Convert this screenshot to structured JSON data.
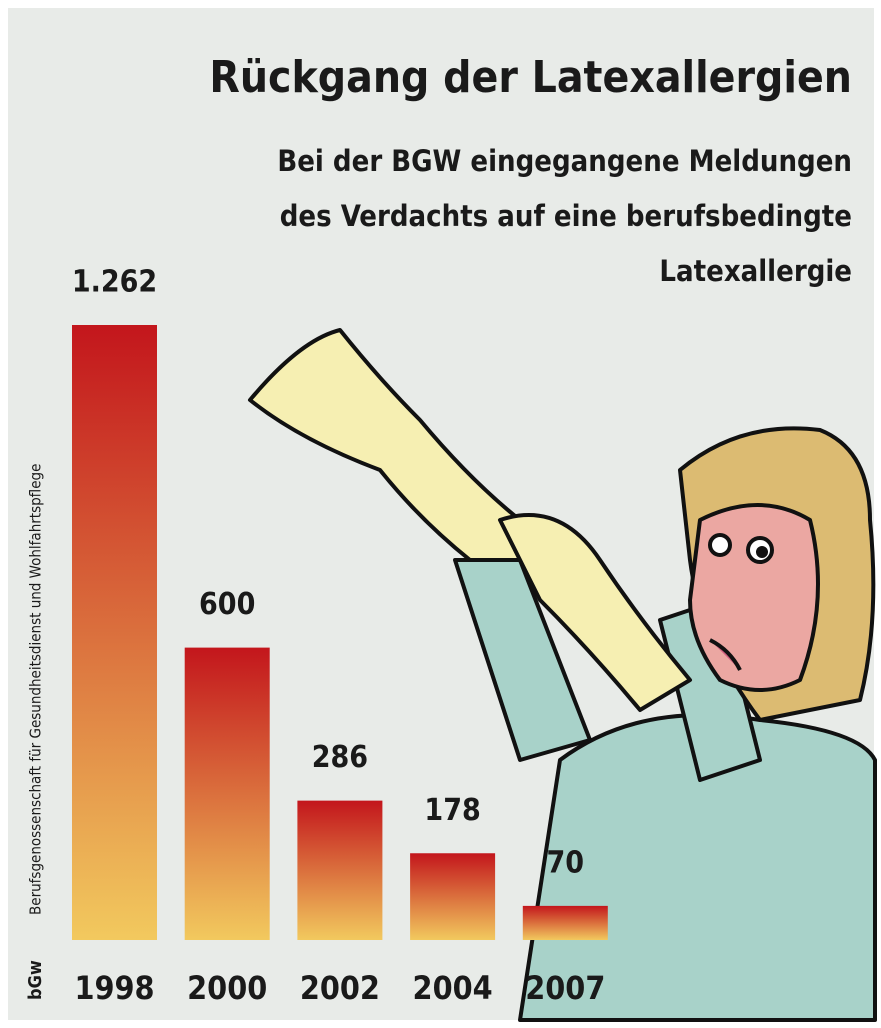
{
  "chart_data": {
    "type": "bar",
    "title": "Rückgang der Latexallergien",
    "subtitle": [
      "Bei der BGW eingegangene Meldungen",
      "des Verdachts auf eine berufsbedingte",
      "Latexallergie"
    ],
    "categories": [
      "1998",
      "2000",
      "2002",
      "2004",
      "2007"
    ],
    "values": [
      1262,
      600,
      286,
      178,
      70
    ],
    "value_labels": [
      "1.262",
      "600",
      "286",
      "178",
      "70"
    ],
    "color": "#c3161c",
    "gradient_to": "#f2c95e",
    "source": "Berufsgenossenschaft für Gesundheitsdienst und Wohlfahrtspflege",
    "logo": "bGw"
  }
}
